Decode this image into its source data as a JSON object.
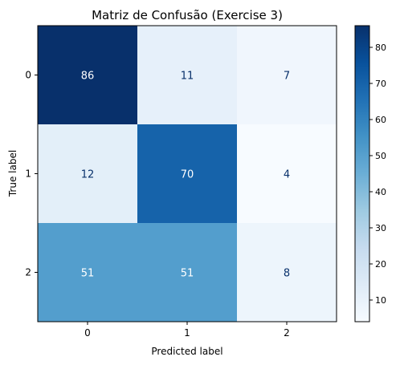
{
  "chart_data": {
    "type": "heatmap",
    "title": "Matriz de Confusão (Exercise 3)",
    "xlabel": "Predicted label",
    "ylabel": "True label",
    "x_categories": [
      "0",
      "1",
      "2"
    ],
    "y_categories": [
      "0",
      "1",
      "2"
    ],
    "matrix": [
      [
        86,
        11,
        7
      ],
      [
        12,
        70,
        4
      ],
      [
        51,
        51,
        8
      ]
    ],
    "colormap": "Blues",
    "colorbar": {
      "min": 4,
      "max": 86,
      "ticks": [
        10,
        20,
        30,
        40,
        50,
        60,
        70,
        80
      ],
      "tick_labels": [
        "10",
        "20",
        "30",
        "40",
        "50",
        "60",
        "70",
        "80"
      ]
    },
    "colors": {
      "low": "#f7fbff",
      "high": "#08306b",
      "text_dark": "#08306b",
      "text_light": "#ffffff"
    }
  }
}
